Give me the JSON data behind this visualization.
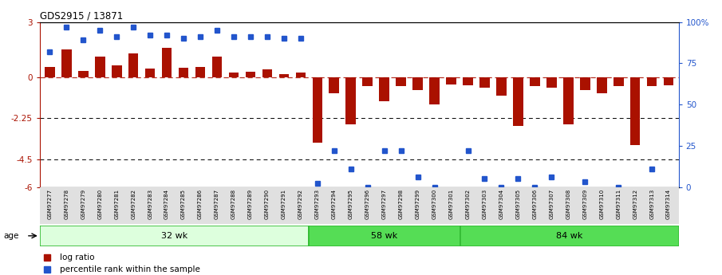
{
  "title": "GDS2915 / 13871",
  "samples": [
    "GSM97277",
    "GSM97278",
    "GSM97279",
    "GSM97280",
    "GSM97281",
    "GSM97282",
    "GSM97283",
    "GSM97284",
    "GSM97285",
    "GSM97286",
    "GSM97287",
    "GSM97288",
    "GSM97289",
    "GSM97290",
    "GSM97291",
    "GSM97292",
    "GSM97293",
    "GSM97294",
    "GSM97295",
    "GSM97296",
    "GSM97297",
    "GSM97298",
    "GSM97299",
    "GSM97300",
    "GSM97301",
    "GSM97302",
    "GSM97303",
    "GSM97304",
    "GSM97305",
    "GSM97306",
    "GSM97307",
    "GSM97308",
    "GSM97309",
    "GSM97310",
    "GSM97311",
    "GSM97312",
    "GSM97313",
    "GSM97314"
  ],
  "log_ratio": [
    0.55,
    1.5,
    0.35,
    1.1,
    0.65,
    1.3,
    0.45,
    1.6,
    0.5,
    0.55,
    1.1,
    0.25,
    0.3,
    0.4,
    0.15,
    0.25,
    -3.6,
    -0.9,
    -2.6,
    -0.5,
    -1.3,
    -0.5,
    -0.7,
    -1.5,
    -0.4,
    -0.45,
    -0.6,
    -1.0,
    -2.65,
    -0.5,
    -0.6,
    -2.6,
    -0.7,
    -0.9,
    -0.5,
    -3.7,
    -0.5,
    -0.45
  ],
  "percentile_pct": [
    82,
    97,
    89,
    95,
    91,
    97,
    92,
    92,
    90,
    91,
    95,
    91,
    91,
    91,
    90,
    90,
    2,
    22,
    11,
    0,
    22,
    22,
    6,
    0,
    -3,
    22,
    5,
    0,
    5,
    0,
    6,
    -3,
    3,
    -3,
    0,
    -3,
    11,
    -3
  ],
  "groups": [
    {
      "label": "32 wk",
      "start": 0,
      "end": 16,
      "color": "#ddffdd"
    },
    {
      "label": "58 wk",
      "start": 16,
      "end": 25,
      "color": "#66dd66"
    },
    {
      "label": "84 wk",
      "start": 25,
      "end": 38,
      "color": "#66dd66"
    }
  ],
  "bar_color": "#aa1100",
  "dot_color": "#2255cc",
  "ylim": [
    -6,
    3
  ],
  "yticks_left": [
    3,
    0,
    -2.25,
    -4.5,
    -6
  ],
  "yticks_right_pct": [
    100,
    75,
    50,
    25,
    0
  ],
  "yticks_right_labels": [
    "100%",
    "75",
    "50",
    "25",
    "0"
  ],
  "legend_items": [
    "log ratio",
    "percentile rank within the sample"
  ],
  "group_border_color": "#33bb33"
}
